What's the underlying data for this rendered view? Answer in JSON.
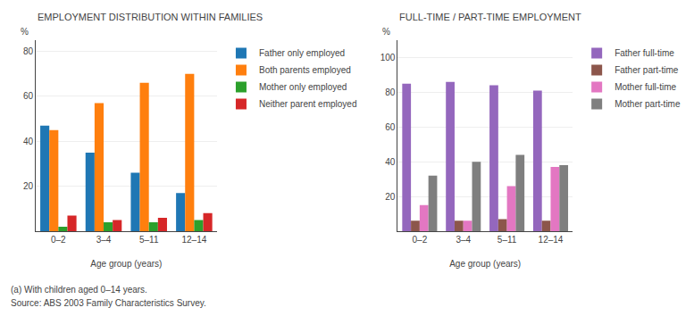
{
  "chart_data": [
    {
      "type": "bar",
      "title": "EMPLOYMENT DISTRIBUTION WITHIN FAMILIES",
      "categories": [
        "0–2",
        "3–4",
        "5–11",
        "12–14"
      ],
      "series": [
        {
          "name": "Father only employed",
          "values": [
            47,
            35,
            26,
            17
          ]
        },
        {
          "name": "Both parents employed",
          "values": [
            45,
            57,
            66,
            70
          ]
        },
        {
          "name": "Mother only employed",
          "values": [
            2,
            4,
            4,
            5
          ]
        },
        {
          "name": "Neither parent employed",
          "values": [
            7,
            5,
            6,
            8
          ]
        }
      ],
      "xlabel": "Age group (years)",
      "ylabel": "%",
      "ylim": [
        0,
        85
      ],
      "yticks": [
        20,
        40,
        60,
        80
      ],
      "grid": true,
      "legend": "right"
    },
    {
      "type": "bar",
      "title": "FULL-TIME / PART-TIME EMPLOYMENT",
      "categories": [
        "0–2",
        "3–4",
        "5–11",
        "12–14"
      ],
      "series": [
        {
          "name": "Father full-time",
          "values": [
            85,
            86,
            84,
            81
          ]
        },
        {
          "name": "Father part-time",
          "values": [
            6,
            6,
            7,
            6
          ]
        },
        {
          "name": "Mother full-time",
          "values": [
            15,
            6,
            26,
            37
          ]
        },
        {
          "name": "Mother part-time",
          "values": [
            32,
            40,
            44,
            38
          ]
        }
      ],
      "xlabel": "Age group (years)",
      "ylabel": "%",
      "ylim": [
        0,
        110
      ],
      "yticks": [
        20,
        40,
        60,
        80,
        100
      ],
      "grid": true,
      "legend": "right"
    }
  ],
  "annotations": [
    "(a) With children aged 0–14 years.",
    "Source: ABS 2003 Family Characteristics Survey."
  ]
}
